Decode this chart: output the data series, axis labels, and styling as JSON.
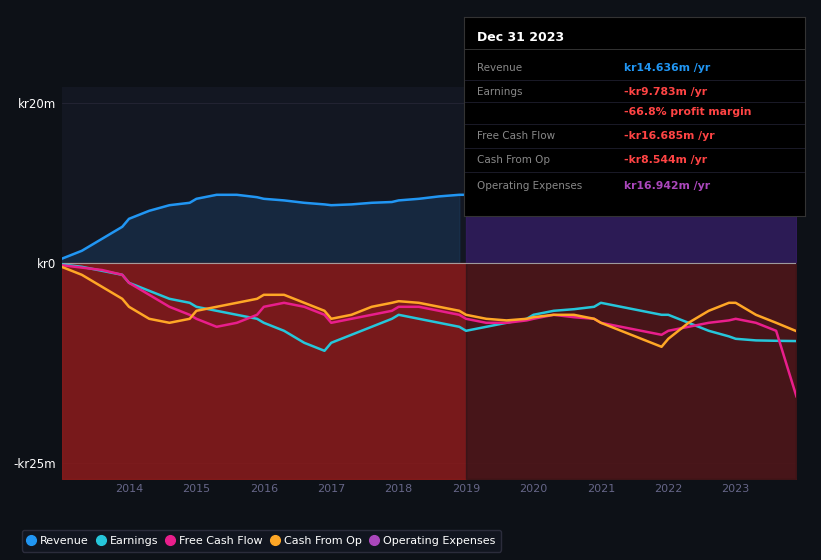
{
  "bg_color": "#131722",
  "plot_bg_color": "#131722",
  "outer_bg": "#0d1117",
  "years": [
    2013.0,
    2013.3,
    2013.6,
    2013.9,
    2014.0,
    2014.3,
    2014.6,
    2014.9,
    2015.0,
    2015.3,
    2015.6,
    2015.9,
    2016.0,
    2016.3,
    2016.6,
    2016.9,
    2017.0,
    2017.3,
    2017.6,
    2017.9,
    2018.0,
    2018.3,
    2018.6,
    2018.9,
    2019.0,
    2019.3,
    2019.6,
    2019.9,
    2020.0,
    2020.3,
    2020.6,
    2020.9,
    2021.0,
    2021.3,
    2021.6,
    2021.9,
    2022.0,
    2022.3,
    2022.6,
    2022.9,
    2023.0,
    2023.3,
    2023.6,
    2023.9
  ],
  "revenue": [
    0.5,
    1.5,
    3.0,
    4.5,
    5.5,
    6.5,
    7.2,
    7.5,
    8.0,
    8.5,
    8.5,
    8.2,
    8.0,
    7.8,
    7.5,
    7.3,
    7.2,
    7.3,
    7.5,
    7.6,
    7.8,
    8.0,
    8.3,
    8.5,
    8.5,
    9.0,
    9.8,
    10.5,
    11.0,
    11.5,
    12.0,
    12.5,
    13.0,
    13.5,
    14.0,
    13.8,
    13.5,
    13.2,
    13.5,
    14.0,
    14.2,
    14.4,
    14.5,
    14.636
  ],
  "earnings": [
    -0.2,
    -0.5,
    -1.0,
    -1.5,
    -2.5,
    -3.5,
    -4.5,
    -5.0,
    -5.5,
    -6.0,
    -6.5,
    -7.0,
    -7.5,
    -8.5,
    -10.0,
    -11.0,
    -10.0,
    -9.0,
    -8.0,
    -7.0,
    -6.5,
    -7.0,
    -7.5,
    -8.0,
    -8.5,
    -8.0,
    -7.5,
    -7.0,
    -6.5,
    -6.0,
    -5.8,
    -5.5,
    -5.0,
    -5.5,
    -6.0,
    -6.5,
    -6.5,
    -7.5,
    -8.5,
    -9.2,
    -9.5,
    -9.7,
    -9.75,
    -9.783
  ],
  "free_cash_flow": [
    -0.3,
    -0.6,
    -0.9,
    -1.5,
    -2.5,
    -4.0,
    -5.5,
    -6.5,
    -7.0,
    -8.0,
    -7.5,
    -6.5,
    -5.5,
    -5.0,
    -5.5,
    -6.5,
    -7.5,
    -7.0,
    -6.5,
    -6.0,
    -5.5,
    -5.5,
    -6.0,
    -6.5,
    -7.0,
    -7.5,
    -7.5,
    -7.2,
    -7.0,
    -6.5,
    -6.8,
    -7.0,
    -7.5,
    -8.0,
    -8.5,
    -9.0,
    -8.5,
    -8.0,
    -7.5,
    -7.2,
    -7.0,
    -7.5,
    -8.5,
    -16.685
  ],
  "cash_from_op": [
    -0.5,
    -1.5,
    -3.0,
    -4.5,
    -5.5,
    -7.0,
    -7.5,
    -7.0,
    -6.0,
    -5.5,
    -5.0,
    -4.5,
    -4.0,
    -4.0,
    -5.0,
    -6.0,
    -7.0,
    -6.5,
    -5.5,
    -5.0,
    -4.8,
    -5.0,
    -5.5,
    -6.0,
    -6.5,
    -7.0,
    -7.2,
    -7.0,
    -6.8,
    -6.5,
    -6.5,
    -7.0,
    -7.5,
    -8.5,
    -9.5,
    -10.5,
    -9.5,
    -7.5,
    -6.0,
    -5.0,
    -5.0,
    -6.5,
    -7.5,
    -8.544
  ],
  "operating_expenses": [
    null,
    null,
    null,
    null,
    null,
    null,
    null,
    null,
    null,
    null,
    null,
    null,
    null,
    null,
    null,
    null,
    null,
    null,
    null,
    null,
    null,
    null,
    null,
    null,
    7.0,
    8.5,
    9.5,
    10.5,
    11.0,
    11.5,
    12.5,
    13.0,
    13.5,
    14.0,
    15.0,
    15.5,
    15.5,
    15.8,
    16.0,
    16.2,
    16.3,
    16.5,
    16.7,
    16.942
  ],
  "ylim": [
    -27,
    22
  ],
  "yticks": [
    -25,
    0,
    20
  ],
  "ytick_labels": [
    "-kr25m",
    "kr0",
    "kr20m"
  ],
  "xtick_start": 2014,
  "xtick_end": 2023,
  "revenue_color": "#2196f3",
  "earnings_color": "#26c6da",
  "free_cash_flow_color": "#e91e8c",
  "cash_from_op_color": "#ffa726",
  "operating_expenses_color": "#ab47bc",
  "fill_revenue_color": "#1a3a5c",
  "fill_revenue_alpha": 0.5,
  "fill_red_color": "#8b1a1a",
  "fill_red_alpha": 0.85,
  "fill_opex_color": "#3d1a6e",
  "fill_opex_alpha": 0.6,
  "dark_overlay_color": "#0d1117",
  "dark_overlay_alpha": 0.45,
  "shaded_x_start": 2019.0,
  "info_box": {
    "title": "Dec 31 2023",
    "title_color": "#ffffff",
    "bg": "#000000",
    "border": "#333333",
    "rows": [
      {
        "label": "Revenue",
        "label_color": "#888888",
        "value": "kr14.636m /yr",
        "value_color": "#2196f3"
      },
      {
        "label": "Earnings",
        "label_color": "#888888",
        "value": "-kr9.783m /yr",
        "value_color": "#ff4444"
      },
      {
        "label": "",
        "label_color": "#888888",
        "value": "-66.8% profit margin",
        "value_color": "#ff4444"
      },
      {
        "label": "Free Cash Flow",
        "label_color": "#888888",
        "value": "-kr16.685m /yr",
        "value_color": "#ff4444"
      },
      {
        "label": "Cash From Op",
        "label_color": "#888888",
        "value": "-kr8.544m /yr",
        "value_color": "#ff4444"
      },
      {
        "label": "Operating Expenses",
        "label_color": "#888888",
        "value": "kr16.942m /yr",
        "value_color": "#ab47bc"
      }
    ]
  },
  "legend_items": [
    {
      "label": "Revenue",
      "color": "#2196f3"
    },
    {
      "label": "Earnings",
      "color": "#26c6da"
    },
    {
      "label": "Free Cash Flow",
      "color": "#e91e8c"
    },
    {
      "label": "Cash From Op",
      "color": "#ffa726"
    },
    {
      "label": "Operating Expenses",
      "color": "#ab47bc"
    }
  ]
}
